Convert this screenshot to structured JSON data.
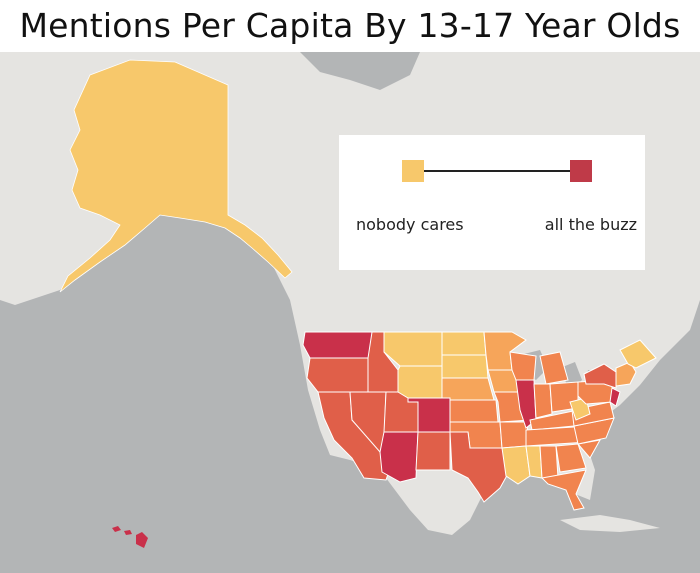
{
  "title": "Mentions Per Capita By 13-17 Year Olds",
  "legend": {
    "low_label": "nobody cares",
    "high_label": "all the buzz",
    "low_color": "#f7c86b",
    "high_color": "#bf3a48"
  },
  "colors": {
    "water": "#b3b5b6",
    "land": "#e5e4e1",
    "borders": "#ffffff",
    "scale": [
      "#f7c86b",
      "#f6a55a",
      "#f1844e",
      "#e05f49",
      "#c9304a"
    ]
  },
  "regions": [
    {
      "name": "alaska",
      "level": 0
    },
    {
      "name": "hawaii",
      "level": 4
    },
    {
      "name": "washington",
      "level": 4
    },
    {
      "name": "oregon",
      "level": 3
    },
    {
      "name": "california",
      "level": 3
    },
    {
      "name": "idaho",
      "level": 3
    },
    {
      "name": "nevada",
      "level": 3
    },
    {
      "name": "utah",
      "level": 3
    },
    {
      "name": "arizona",
      "level": 4
    },
    {
      "name": "montana",
      "level": 0
    },
    {
      "name": "wyoming",
      "level": 0
    },
    {
      "name": "colorado",
      "level": 4
    },
    {
      "name": "new-mexico",
      "level": 3
    },
    {
      "name": "north-dakota",
      "level": 0
    },
    {
      "name": "south-dakota",
      "level": 0
    },
    {
      "name": "nebraska",
      "level": 1
    },
    {
      "name": "kansas",
      "level": 2
    },
    {
      "name": "oklahoma",
      "level": 2
    },
    {
      "name": "texas",
      "level": 3
    },
    {
      "name": "minnesota",
      "level": 1
    },
    {
      "name": "iowa",
      "level": 1
    },
    {
      "name": "missouri",
      "level": 2
    },
    {
      "name": "arkansas",
      "level": 2
    },
    {
      "name": "louisiana",
      "level": 0
    },
    {
      "name": "wisconsin",
      "level": 2
    },
    {
      "name": "illinois",
      "level": 4
    },
    {
      "name": "michigan",
      "level": 2
    },
    {
      "name": "indiana",
      "level": 2
    },
    {
      "name": "ohio",
      "level": 2
    },
    {
      "name": "kentucky",
      "level": 2
    },
    {
      "name": "tennessee",
      "level": 2
    },
    {
      "name": "mississippi",
      "level": 0
    },
    {
      "name": "alabama",
      "level": 2
    },
    {
      "name": "georgia",
      "level": 2
    },
    {
      "name": "florida",
      "level": 2
    },
    {
      "name": "south-carolina",
      "level": 2
    },
    {
      "name": "north-carolina",
      "level": 2
    },
    {
      "name": "virginia",
      "level": 2
    },
    {
      "name": "west-virginia",
      "level": 0
    },
    {
      "name": "pennsylvania",
      "level": 2
    },
    {
      "name": "new-york",
      "level": 3
    },
    {
      "name": "new-jersey",
      "level": 4
    },
    {
      "name": "new-england",
      "level": 1
    },
    {
      "name": "maine",
      "level": 0
    }
  ]
}
